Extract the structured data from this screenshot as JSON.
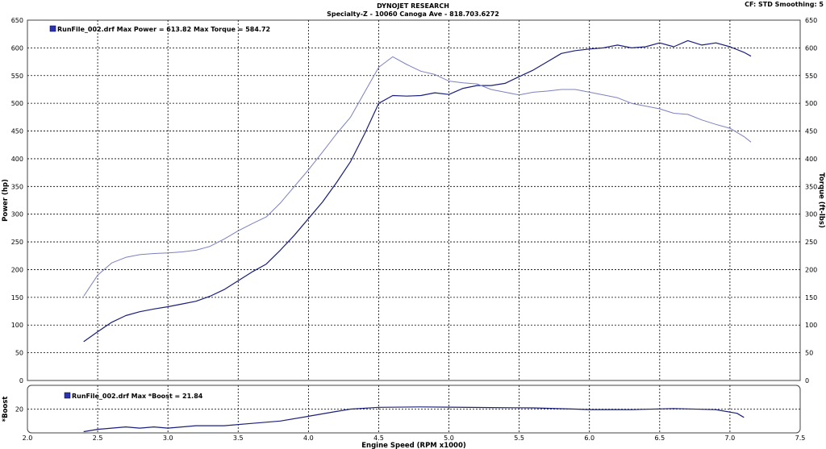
{
  "header": {
    "title": "DYNOJET RESEARCH",
    "subtitle": "Specialty-Z - 10060 Canoga Ave - 818.703.6272",
    "cf_info": "CF: STD   Smoothing: 5"
  },
  "colors": {
    "power": "#1a1f7a",
    "torque": "#7b80c0",
    "boost": "#1a1f7a",
    "legend_swatch": "#2a32b8"
  },
  "chart_data": [
    {
      "type": "line",
      "xlabel": "Engine Speed (RPM x1000)",
      "ylabel": "Power (hp)",
      "y2label": "Torque (ft-lbs)",
      "xlim": [
        2.0,
        7.5
      ],
      "ylim": [
        0,
        650
      ],
      "y2lim": [
        0,
        650
      ],
      "x_ticks": [
        "2.0",
        "2.5",
        "3.0",
        "3.5",
        "4.0",
        "4.5",
        "5.0",
        "5.5",
        "6.0",
        "6.5",
        "7.0",
        "7.5"
      ],
      "y_ticks": [
        "0",
        "50",
        "100",
        "150",
        "200",
        "250",
        "300",
        "350",
        "400",
        "450",
        "500",
        "550",
        "600",
        "650"
      ],
      "grid": true,
      "legend": "RunFile_002.drf Max Power = 613.82    Max Torque = 584.72",
      "series": [
        {
          "name": "Power",
          "axis": "left",
          "x": [
            2.4,
            2.5,
            2.6,
            2.7,
            2.8,
            2.9,
            3.0,
            3.1,
            3.2,
            3.3,
            3.4,
            3.5,
            3.6,
            3.7,
            3.8,
            3.9,
            4.0,
            4.1,
            4.2,
            4.3,
            4.4,
            4.5,
            4.6,
            4.7,
            4.8,
            4.9,
            5.0,
            5.1,
            5.2,
            5.3,
            5.4,
            5.5,
            5.6,
            5.7,
            5.8,
            5.9,
            6.0,
            6.1,
            6.2,
            6.3,
            6.4,
            6.5,
            6.6,
            6.7,
            6.8,
            6.9,
            7.0,
            7.1,
            7.15
          ],
          "y": [
            70,
            88,
            105,
            117,
            124,
            129,
            133,
            138,
            143,
            152,
            164,
            180,
            196,
            210,
            235,
            262,
            292,
            322,
            357,
            395,
            445,
            500,
            514,
            513,
            514,
            519,
            516,
            527,
            532,
            532,
            536,
            548,
            560,
            575,
            590,
            595,
            598,
            600,
            605,
            600,
            602,
            609,
            602,
            613,
            605,
            609,
            602,
            592,
            585
          ]
        },
        {
          "name": "Torque",
          "axis": "right",
          "x": [
            2.4,
            2.5,
            2.6,
            2.7,
            2.8,
            2.9,
            3.0,
            3.1,
            3.2,
            3.3,
            3.4,
            3.5,
            3.6,
            3.7,
            3.8,
            3.9,
            4.0,
            4.1,
            4.2,
            4.3,
            4.4,
            4.5,
            4.6,
            4.7,
            4.8,
            4.9,
            5.0,
            5.1,
            5.2,
            5.3,
            5.4,
            5.5,
            5.6,
            5.7,
            5.8,
            5.9,
            6.0,
            6.1,
            6.2,
            6.3,
            6.4,
            6.5,
            6.6,
            6.7,
            6.8,
            6.9,
            7.0,
            7.1,
            7.15
          ],
          "y": [
            152,
            190,
            212,
            222,
            227,
            229,
            230,
            232,
            235,
            242,
            255,
            270,
            283,
            295,
            320,
            350,
            380,
            412,
            445,
            475,
            520,
            565,
            584,
            570,
            558,
            552,
            540,
            537,
            535,
            525,
            520,
            515,
            520,
            522,
            525,
            525,
            520,
            515,
            510,
            500,
            495,
            490,
            482,
            480,
            470,
            462,
            455,
            440,
            430
          ]
        }
      ]
    },
    {
      "type": "line",
      "xlabel": "Engine Speed (RPM x1000)",
      "ylabel": "*Boost",
      "xlim": [
        2.0,
        7.5
      ],
      "ylim": [
        0,
        40
      ],
      "x_ticks": [
        "2.0",
        "2.5",
        "3.0",
        "3.5",
        "4.0",
        "4.5",
        "5.0",
        "5.5",
        "6.0",
        "6.5",
        "7.0",
        "7.5"
      ],
      "y_ticks": [
        "0",
        "20",
        "40"
      ],
      "grid": true,
      "legend": "RunFile_002.drf Max *Boost = 21.84",
      "series": [
        {
          "name": "*Boost",
          "axis": "left",
          "x": [
            2.4,
            2.5,
            2.6,
            2.7,
            2.8,
            2.9,
            3.0,
            3.2,
            3.4,
            3.6,
            3.8,
            4.0,
            4.2,
            4.3,
            4.5,
            4.8,
            5.0,
            5.3,
            5.6,
            5.9,
            6.0,
            6.3,
            6.6,
            6.9,
            7.05,
            7.1
          ],
          "y": [
            1,
            3,
            4,
            5,
            4,
            5,
            4,
            6,
            6,
            8,
            10,
            14,
            18,
            20,
            21.5,
            21.8,
            21.6,
            21.3,
            21,
            20,
            19.6,
            19.5,
            20.5,
            19.5,
            16.5,
            13
          ]
        }
      ]
    }
  ]
}
